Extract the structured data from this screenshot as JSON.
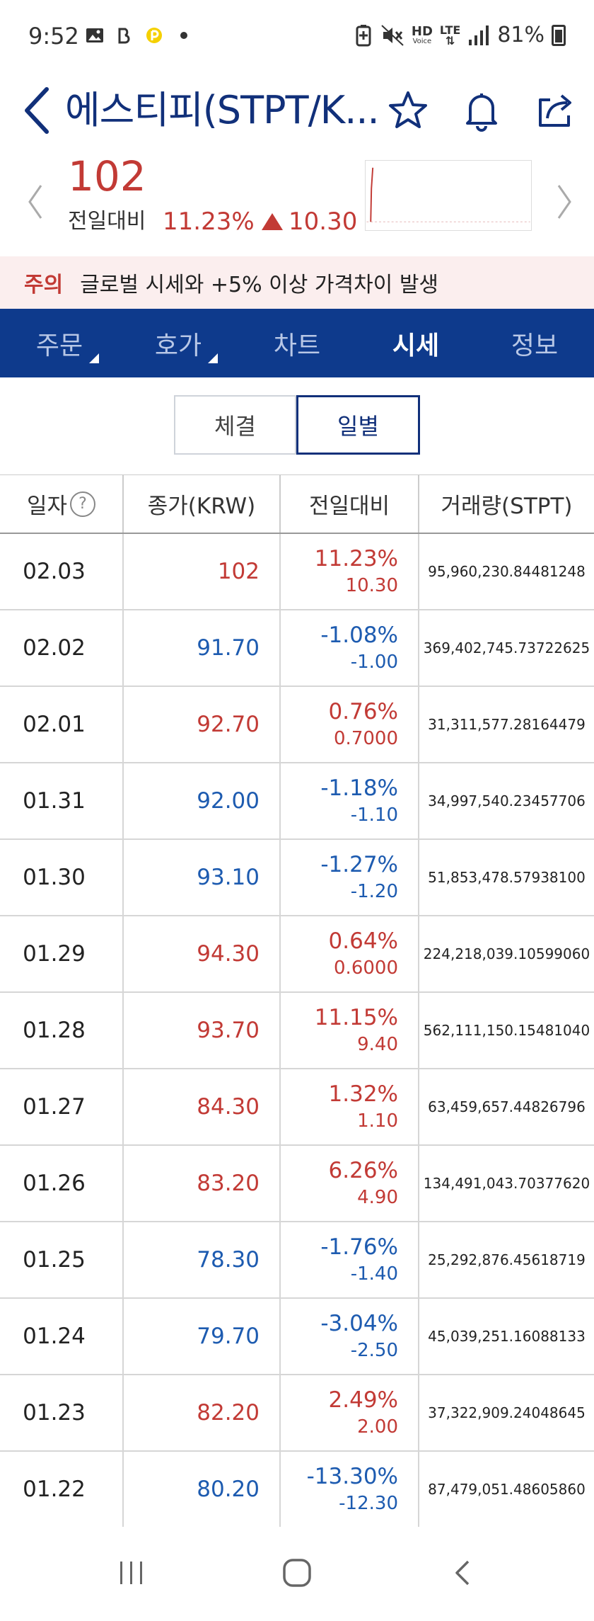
{
  "status_bar": {
    "time": "9:52",
    "hd_label": "HD",
    "voice_label": "Voice",
    "lte_label": "LTE",
    "battery": "81%"
  },
  "header": {
    "title": "에스티피(STPT/K..."
  },
  "price": {
    "current": "102",
    "compare_label": "전일대비",
    "rate": "11.23%",
    "change": "10.30"
  },
  "notice": {
    "tag": "주의",
    "text": "글로벌 시세와 +5% 이상 가격차이 발생"
  },
  "tabs": [
    {
      "label": "주문"
    },
    {
      "label": "호가"
    },
    {
      "label": "차트"
    },
    {
      "label": "시세"
    },
    {
      "label": "정보"
    }
  ],
  "segment": {
    "options": [
      "체결",
      "일별"
    ]
  },
  "table": {
    "headers": [
      "일자",
      "종가(KRW)",
      "전일대비",
      "거래량(STPT)"
    ],
    "rows": [
      {
        "date": "02.03",
        "close": "102",
        "rate": "11.23%",
        "change": "10.30",
        "volume": "95,960,230.84481248",
        "dir": "up"
      },
      {
        "date": "02.02",
        "close": "91.70",
        "rate": "-1.08%",
        "change": "-1.00",
        "volume": "369,402,745.73722625",
        "dir": "down"
      },
      {
        "date": "02.01",
        "close": "92.70",
        "rate": "0.76%",
        "change": "0.7000",
        "volume": "31,311,577.28164479",
        "dir": "up"
      },
      {
        "date": "01.31",
        "close": "92.00",
        "rate": "-1.18%",
        "change": "-1.10",
        "volume": "34,997,540.23457706",
        "dir": "down"
      },
      {
        "date": "01.30",
        "close": "93.10",
        "rate": "-1.27%",
        "change": "-1.20",
        "volume": "51,853,478.57938100",
        "dir": "down"
      },
      {
        "date": "01.29",
        "close": "94.30",
        "rate": "0.64%",
        "change": "0.6000",
        "volume": "224,218,039.10599060",
        "dir": "up"
      },
      {
        "date": "01.28",
        "close": "93.70",
        "rate": "11.15%",
        "change": "9.40",
        "volume": "562,111,150.15481040",
        "dir": "up"
      },
      {
        "date": "01.27",
        "close": "84.30",
        "rate": "1.32%",
        "change": "1.10",
        "volume": "63,459,657.44826796",
        "dir": "up"
      },
      {
        "date": "01.26",
        "close": "83.20",
        "rate": "6.26%",
        "change": "4.90",
        "volume": "134,491,043.70377620",
        "dir": "up"
      },
      {
        "date": "01.25",
        "close": "78.30",
        "rate": "-1.76%",
        "change": "-1.40",
        "volume": "25,292,876.45618719",
        "dir": "down"
      },
      {
        "date": "01.24",
        "close": "79.70",
        "rate": "-3.04%",
        "change": "-2.50",
        "volume": "45,039,251.16088133",
        "dir": "down"
      },
      {
        "date": "01.23",
        "close": "82.20",
        "rate": "2.49%",
        "change": "2.00",
        "volume": "37,322,909.24048645",
        "dir": "up"
      },
      {
        "date": "01.22",
        "close": "80.20",
        "rate": "-13.30%",
        "change": "-12.30",
        "volume": "87,479,051.48605860",
        "dir": "down"
      }
    ]
  },
  "colors": {
    "up": "#c23a35",
    "down": "#1d5bb0",
    "brand": "#0e3a8c"
  }
}
